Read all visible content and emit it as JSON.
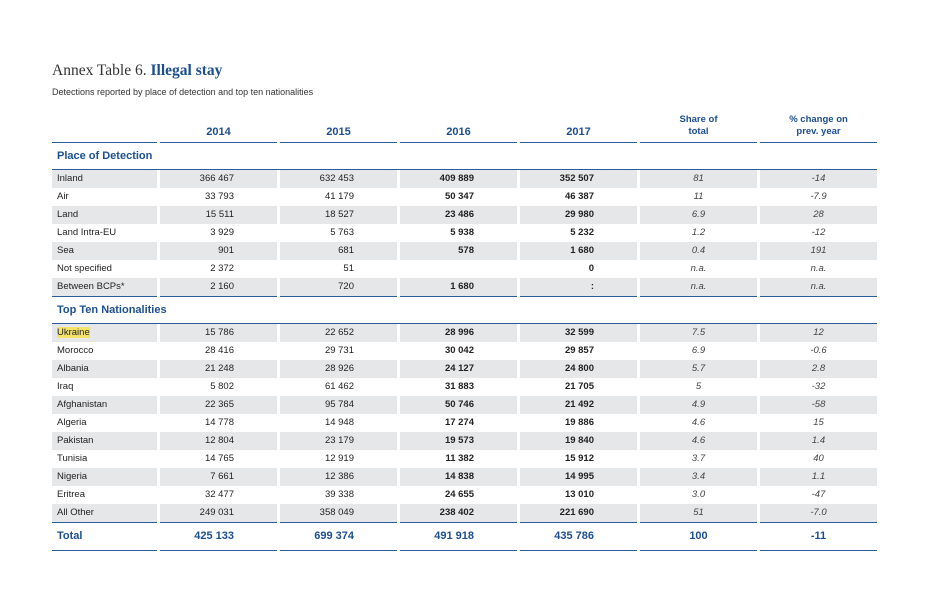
{
  "header": {
    "label": "Annex Table 6.",
    "title": "Illegal stay",
    "subtitle": "Detections reported by place of detection and top ten nationalities"
  },
  "table": {
    "columns": [
      "2014",
      "2015",
      "2016",
      "2017",
      "Share of total",
      "% change on prev. year"
    ],
    "sections": [
      {
        "title": "Place of Detection",
        "rows": [
          {
            "label": "Inland",
            "cells": [
              "366 467",
              "632 453",
              "409 889",
              "352 507",
              "81",
              "-14"
            ]
          },
          {
            "label": "Air",
            "cells": [
              "33 793",
              "41 179",
              "50 347",
              "46 387",
              "11",
              "-7.9"
            ]
          },
          {
            "label": "Land",
            "cells": [
              "15 511",
              "18 527",
              "23 486",
              "29 980",
              "6.9",
              "28"
            ]
          },
          {
            "label": "Land Intra-EU",
            "cells": [
              "3 929",
              "5 763",
              "5 938",
              "5 232",
              "1.2",
              "-12"
            ]
          },
          {
            "label": "Sea",
            "cells": [
              "901",
              "681",
              "578",
              "1 680",
              "0.4",
              "191"
            ]
          },
          {
            "label": "Not specified",
            "cells": [
              "2 372",
              "51",
              null,
              "0",
              "n.a.",
              "n.a."
            ]
          },
          {
            "label": "Between BCPs*",
            "cells": [
              "2 160",
              "720",
              "1 680",
              ":",
              "n.a.",
              "n.a."
            ]
          }
        ]
      },
      {
        "title": "Top Ten Nationalities",
        "rows": [
          {
            "label": "Ukraine",
            "highlight": true,
            "cells": [
              "15 786",
              "22 652",
              "28 996",
              "32 599",
              "7.5",
              "12"
            ]
          },
          {
            "label": "Morocco",
            "cells": [
              "28 416",
              "29 731",
              "30 042",
              "29 857",
              "6.9",
              "-0.6"
            ]
          },
          {
            "label": "Albania",
            "cells": [
              "21 248",
              "28 926",
              "24 127",
              "24 800",
              "5.7",
              "2.8"
            ]
          },
          {
            "label": "Iraq",
            "cells": [
              "5 802",
              "61 462",
              "31 883",
              "21 705",
              "5",
              "-32"
            ]
          },
          {
            "label": "Afghanistan",
            "cells": [
              "22 365",
              "95 784",
              "50 746",
              "21 492",
              "4.9",
              "-58"
            ]
          },
          {
            "label": "Algeria",
            "cells": [
              "14 778",
              "14 948",
              "17 274",
              "19 886",
              "4.6",
              "15"
            ]
          },
          {
            "label": "Pakistan",
            "cells": [
              "12 804",
              "23 179",
              "19 573",
              "19 840",
              "4.6",
              "1.4"
            ]
          },
          {
            "label": "Tunisia",
            "cells": [
              "14 765",
              "12 919",
              "11 382",
              "15 912",
              "3.7",
              "40"
            ]
          },
          {
            "label": "Nigeria",
            "cells": [
              "7 661",
              "12 386",
              "14 838",
              "14 995",
              "3.4",
              "1.1"
            ]
          },
          {
            "label": "Eritrea",
            "cells": [
              "32 477",
              "39 338",
              "24 655",
              "13 010",
              "3.0",
              "-47"
            ]
          },
          {
            "label": "All Other",
            "cells": [
              "249 031",
              "358 049",
              "238 402",
              "221 690",
              "51",
              "-7.0"
            ]
          }
        ]
      }
    ],
    "total": {
      "label": "Total",
      "cells": [
        "425 133",
        "699 374",
        "491 918",
        "435 786",
        "100",
        "-11"
      ]
    }
  }
}
